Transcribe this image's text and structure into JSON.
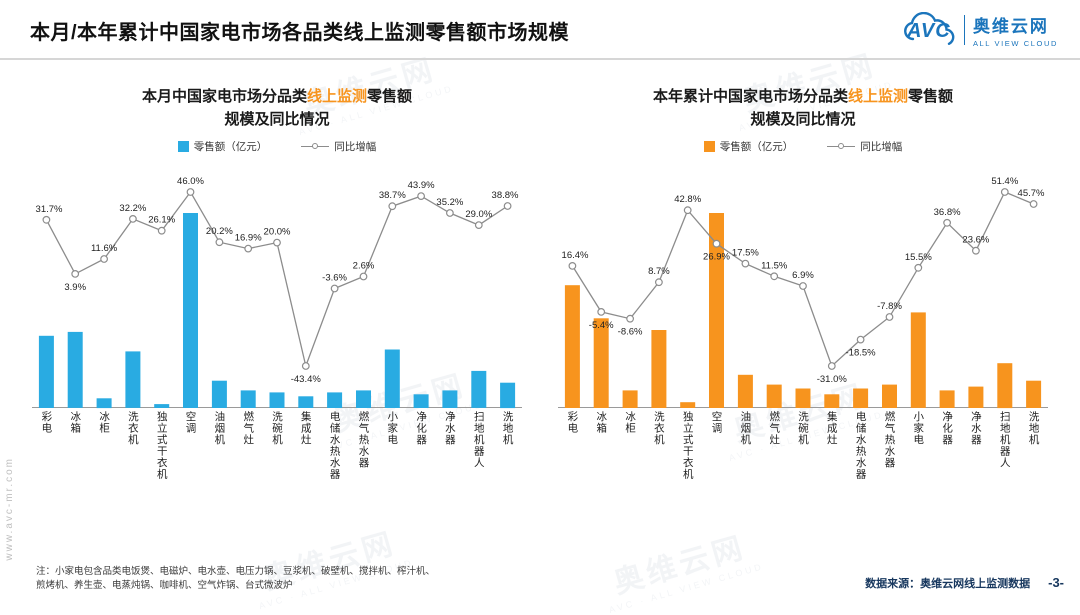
{
  "header": {
    "title": "本月/本年累计中国家电市场各品类线上监测零售额市场规模",
    "logo": {
      "avc": "AVC",
      "name": "奥维云网",
      "tagline": "ALL VIEW CLOUD"
    }
  },
  "watermark": {
    "text": "奥维云网",
    "sub": "AVC · ALL VIEW CLOUD"
  },
  "side_url": "www.avc-mr.com",
  "footer": {
    "note_line1": "注：小家电包含品类电饭煲、电磁炉、电水壶、电压力锅、豆浆机、破壁机、搅拌机、榨汁机、",
    "note_line2": "煎烤机、养生壶、电蒸炖锅、咖啡机、空气炸锅、台式微波炉",
    "source": "数据来源：奥维云网线上监测数据",
    "page": "-3-"
  },
  "chart_data": [
    {
      "type": "bar",
      "combo": "bar+line",
      "title": {
        "prefix": "本月中国家电市场分品类",
        "highlight": "线上监测",
        "suffix": "零售额",
        "line2": "规模及同比情况"
      },
      "legend": {
        "bar": "零售额（亿元）",
        "line": "同比增幅"
      },
      "bar_color": "#29ABE2",
      "line_color": "#8c8c8c",
      "categories": [
        "彩电",
        "冰箱",
        "冰柜",
        "洗衣机",
        "独立式干衣机",
        "空调",
        "油烟机",
        "燃气灶",
        "洗碗机",
        "集成灶",
        "电储水热水器",
        "燃气热水器",
        "小家电",
        "净化器",
        "净水器",
        "扫地机器人",
        "洗地机"
      ],
      "bar_values_relative": [
        37,
        39,
        5,
        29,
        2,
        100,
        14,
        9,
        8,
        6,
        8,
        9,
        30,
        7,
        9,
        19,
        13
      ],
      "series": [
        {
          "name": "同比增幅",
          "unit": "%",
          "values": [
            31.7,
            3.9,
            11.6,
            32.2,
            26.1,
            46.0,
            20.2,
            16.9,
            20.0,
            -43.4,
            -3.6,
            2.6,
            38.7,
            43.9,
            35.2,
            29.0,
            38.8
          ]
        }
      ],
      "label_below": [
        1,
        9
      ],
      "ylabel": "",
      "xlabel": "",
      "grid": false,
      "legend_position": "top"
    },
    {
      "type": "bar",
      "combo": "bar+line",
      "title": {
        "prefix": "本年累计中国家电市场分品类",
        "highlight": "线上监测",
        "suffix": "零售额",
        "line2": "规模及同比情况"
      },
      "legend": {
        "bar": "零售额（亿元）",
        "line": "同比增幅"
      },
      "bar_color": "#F7941E",
      "line_color": "#8c8c8c",
      "categories": [
        "彩电",
        "冰箱",
        "冰柜",
        "洗衣机",
        "独立式干衣机",
        "空调",
        "油烟机",
        "燃气灶",
        "洗碗机",
        "集成灶",
        "电储水热水器",
        "燃气热水器",
        "小家电",
        "净化器",
        "净水器",
        "扫地机器人",
        "洗地机"
      ],
      "bar_values_relative": [
        63,
        46,
        9,
        40,
        3,
        100,
        17,
        12,
        10,
        7,
        10,
        12,
        49,
        9,
        11,
        23,
        14
      ],
      "series": [
        {
          "name": "同比增幅",
          "unit": "%",
          "values": [
            16.4,
            -5.4,
            -8.6,
            8.7,
            42.8,
            26.9,
            17.5,
            11.5,
            6.9,
            -31.0,
            -18.5,
            -7.8,
            15.5,
            36.8,
            23.6,
            51.4,
            45.7
          ]
        }
      ],
      "label_below": [
        1,
        2,
        5,
        9,
        10
      ],
      "ylabel": "",
      "xlabel": "",
      "grid": false,
      "legend_position": "top"
    }
  ]
}
